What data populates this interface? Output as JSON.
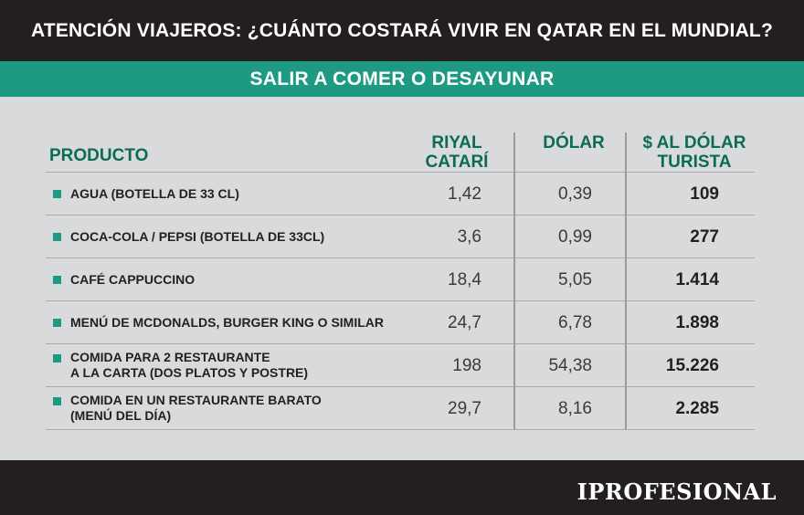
{
  "header": {
    "title": "ATENCIÓN VIAJEROS: ¿CUÁNTO COSTARÁ VIVIR EN QATAR EN EL MUNDIAL?"
  },
  "section": {
    "title": "SALIR A COMER O DESAYUNAR"
  },
  "columns": {
    "product": "PRODUCTO",
    "riyal": "RIYAL\nCATARÍ",
    "dolar": "DÓLAR",
    "tourist": "$ AL DÓLAR\nTURISTA"
  },
  "rows": [
    {
      "product": "AGUA (BOTELLA DE 33 CL)",
      "riyal": "1,42",
      "dolar": "0,39",
      "tourist": "109"
    },
    {
      "product": "COCA-COLA / PEPSI (BOTELLA DE 33CL)",
      "riyal": "3,6",
      "dolar": "0,99",
      "tourist": "277"
    },
    {
      "product": "CAFÉ CAPPUCCINO",
      "riyal": "18,4",
      "dolar": "5,05",
      "tourist": "1.414"
    },
    {
      "product": "MENÚ DE MCDONALDS, BURGER KING O SIMILAR",
      "riyal": "24,7",
      "dolar": "6,78",
      "tourist": "1.898"
    },
    {
      "product": "COMIDA PARA 2 RESTAURANTE\nA LA CARTA (DOS PLATOS Y POSTRE)",
      "riyal": "198",
      "dolar": "54,38",
      "tourist": "15.226"
    },
    {
      "product": "COMIDA EN UN RESTAURANTE BARATO\n(MENÚ DEL DÍA)",
      "riyal": "29,7",
      "dolar": "8,16",
      "tourist": "2.285"
    }
  ],
  "footer": {
    "logo": "IPROFESIONAL"
  },
  "colors": {
    "accent": "#1e9a82",
    "header_text": "#0c6b55",
    "dark": "#231f20"
  }
}
